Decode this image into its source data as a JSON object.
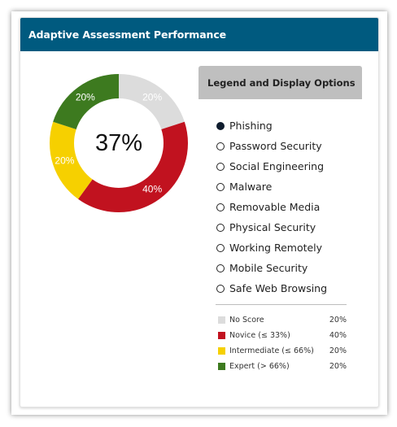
{
  "header": {
    "title": "Adaptive Assessment Performance"
  },
  "donut": {
    "center_value": "37%",
    "segments": [
      {
        "label": "No Score",
        "percent": 20,
        "display": "20%",
        "color": "#dcdcdc"
      },
      {
        "label": "Novice",
        "percent": 40,
        "display": "40%",
        "color": "#c1121f"
      },
      {
        "label": "Intermediate",
        "percent": 20,
        "display": "20%",
        "color": "#f6d000"
      },
      {
        "label": "Expert",
        "percent": 20,
        "display": "20%",
        "color": "#3d7a1f"
      }
    ]
  },
  "legend": {
    "title": "Legend and Display Options",
    "options": [
      {
        "label": "Phishing",
        "selected": true
      },
      {
        "label": "Password Security",
        "selected": false
      },
      {
        "label": "Social Engineering",
        "selected": false
      },
      {
        "label": "Malware",
        "selected": false
      },
      {
        "label": "Removable Media",
        "selected": false
      },
      {
        "label": "Physical Security",
        "selected": false
      },
      {
        "label": "Working Remotely",
        "selected": false
      },
      {
        "label": "Mobile Security",
        "selected": false
      },
      {
        "label": "Safe Web Browsing",
        "selected": false
      }
    ],
    "score_key": [
      {
        "label": "No Score",
        "value": "20%",
        "color": "#dcdcdc"
      },
      {
        "label": "Novice (≤ 33%)",
        "value": "40%",
        "color": "#c1121f"
      },
      {
        "label": "Intermediate (≤ 66%)",
        "value": "20%",
        "color": "#f6d000"
      },
      {
        "label": "Expert (> 66%)",
        "value": "20%",
        "color": "#3d7a1f"
      }
    ]
  },
  "colors": {
    "header_bg": "#005a7f",
    "legend_header_bg": "#bfbfbf"
  }
}
